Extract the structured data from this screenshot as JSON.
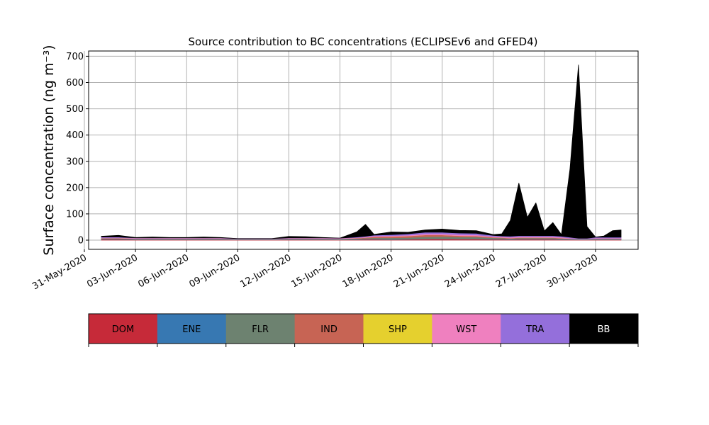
{
  "chart_data": {
    "type": "area",
    "title": "Source contribution to BC concentrations (ECLIPSEv6 and GFED4)",
    "ylabel": "Surface concentration (ng m⁻³)",
    "xlabel": "",
    "ylim": [
      -35,
      720
    ],
    "xlim": [
      "2020-05-31T06:00",
      "2020-07-02T12:00"
    ],
    "yticks": [
      0,
      100,
      200,
      300,
      400,
      500,
      600,
      700
    ],
    "xticks": [
      "31-May-2020",
      "03-Jun-2020",
      "06-Jun-2020",
      "09-Jun-2020",
      "12-Jun-2020",
      "15-Jun-2020",
      "18-Jun-2020",
      "21-Jun-2020",
      "24-Jun-2020",
      "27-Jun-2020",
      "30-Jun-2020"
    ],
    "grid": true,
    "stacked": true,
    "x": [
      "2020-06-01",
      "2020-06-02",
      "2020-06-03",
      "2020-06-04",
      "2020-06-05",
      "2020-06-06",
      "2020-06-07",
      "2020-06-08",
      "2020-06-09",
      "2020-06-10",
      "2020-06-11",
      "2020-06-12",
      "2020-06-13",
      "2020-06-14",
      "2020-06-15",
      "2020-06-16",
      "2020-06-16T12:00",
      "2020-06-17",
      "2020-06-18",
      "2020-06-19",
      "2020-06-20",
      "2020-06-21",
      "2020-06-22",
      "2020-06-23",
      "2020-06-24",
      "2020-06-24T12:00",
      "2020-06-25",
      "2020-06-25T12:00",
      "2020-06-26",
      "2020-06-26T12:00",
      "2020-06-27",
      "2020-06-27T12:00",
      "2020-06-28",
      "2020-06-28T12:00",
      "2020-06-29",
      "2020-06-29T12:00",
      "2020-06-30",
      "2020-06-30T12:00",
      "2020-07-01",
      "2020-07-01T12:00"
    ],
    "series": [
      {
        "name": "DOM",
        "color": "#c62a39",
        "values": [
          3,
          3,
          2,
          2,
          2,
          2,
          2,
          2,
          1,
          1,
          1,
          2,
          2,
          2,
          1,
          2,
          3,
          3,
          2,
          3,
          4,
          5,
          4,
          4,
          3,
          3,
          2,
          3,
          3,
          3,
          3,
          3,
          2,
          2,
          1,
          1,
          2,
          2,
          2,
          2
        ]
      },
      {
        "name": "ENE",
        "color": "#3778b2",
        "values": [
          1,
          1,
          1,
          1,
          1,
          1,
          1,
          1,
          1,
          1,
          1,
          1,
          1,
          1,
          1,
          1,
          1,
          1,
          1,
          1,
          1,
          1,
          1,
          1,
          1,
          1,
          1,
          1,
          1,
          1,
          1,
          1,
          1,
          1,
          1,
          1,
          1,
          1,
          1,
          1
        ]
      },
      {
        "name": "FLR",
        "color": "#6d8270",
        "values": [
          3,
          3,
          2,
          2,
          2,
          2,
          2,
          2,
          1,
          1,
          1,
          2,
          2,
          2,
          2,
          3,
          3,
          5,
          6,
          6,
          8,
          8,
          7,
          7,
          5,
          4,
          3,
          4,
          4,
          4,
          4,
          4,
          3,
          2,
          1,
          1,
          2,
          2,
          2,
          2
        ]
      },
      {
        "name": "IND",
        "color": "#c76454",
        "values": [
          1,
          1,
          1,
          1,
          1,
          1,
          1,
          1,
          1,
          1,
          1,
          1,
          1,
          1,
          1,
          2,
          3,
          4,
          5,
          6,
          7,
          6,
          5,
          4,
          2,
          2,
          2,
          2,
          2,
          2,
          2,
          2,
          2,
          1,
          1,
          1,
          1,
          1,
          1,
          1
        ]
      },
      {
        "name": "SHP",
        "color": "#e5d02e",
        "values": [
          0,
          0,
          0,
          0,
          0,
          0,
          0,
          0,
          0,
          0,
          0,
          0,
          0,
          0,
          0,
          0,
          0,
          0,
          0,
          0,
          0,
          0,
          0,
          0,
          0,
          0,
          0,
          0,
          0,
          0,
          0,
          0,
          0,
          0,
          0,
          0,
          0,
          0,
          0,
          0
        ]
      },
      {
        "name": "WST",
        "color": "#ef80bf",
        "values": [
          2,
          2,
          2,
          2,
          2,
          2,
          2,
          2,
          1,
          1,
          1,
          2,
          2,
          2,
          2,
          2,
          2,
          3,
          3,
          3,
          4,
          4,
          4,
          4,
          3,
          3,
          3,
          3,
          3,
          3,
          3,
          3,
          3,
          2,
          1,
          1,
          2,
          2,
          2,
          2
        ]
      },
      {
        "name": "TRA",
        "color": "#946fdb",
        "values": [
          2,
          2,
          1,
          1,
          1,
          1,
          1,
          1,
          1,
          1,
          1,
          1,
          1,
          1,
          1,
          2,
          3,
          3,
          4,
          5,
          6,
          6,
          6,
          6,
          4,
          3,
          4,
          4,
          4,
          4,
          4,
          4,
          4,
          3,
          2,
          2,
          3,
          3,
          3,
          3
        ]
      },
      {
        "name": "BB",
        "color": "#000000",
        "values": [
          3,
          6,
          1,
          3,
          1,
          1,
          3,
          1,
          0,
          0,
          0,
          5,
          4,
          1,
          0,
          20,
          45,
          3,
          10,
          6,
          9,
          12,
          10,
          10,
          3,
          8,
          60,
          200,
          70,
          125,
          18,
          50,
          6,
          260,
          660,
          45,
          1,
          5,
          25,
          28
        ]
      }
    ]
  },
  "legend": {
    "entries": [
      {
        "label": "DOM",
        "color": "#c62a39",
        "text_color": "#000000"
      },
      {
        "label": "ENE",
        "color": "#3778b2",
        "text_color": "#000000"
      },
      {
        "label": "FLR",
        "color": "#6d8270",
        "text_color": "#000000"
      },
      {
        "label": "IND",
        "color": "#c76454",
        "text_color": "#000000"
      },
      {
        "label": "SHP",
        "color": "#e5d02e",
        "text_color": "#000000"
      },
      {
        "label": "WST",
        "color": "#ef80bf",
        "text_color": "#000000"
      },
      {
        "label": "TRA",
        "color": "#946fdb",
        "text_color": "#000000"
      },
      {
        "label": "BB",
        "color": "#000000",
        "text_color": "#ffffff"
      }
    ]
  }
}
